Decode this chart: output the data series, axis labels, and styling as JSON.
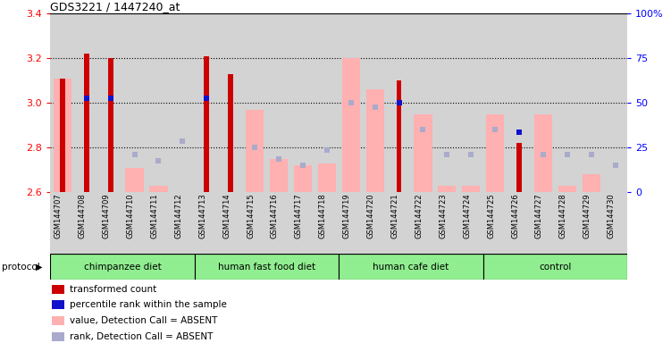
{
  "title": "GDS3221 / 1447240_at",
  "samples": [
    "GSM144707",
    "GSM144708",
    "GSM144709",
    "GSM144710",
    "GSM144711",
    "GSM144712",
    "GSM144713",
    "GSM144714",
    "GSM144715",
    "GSM144716",
    "GSM144717",
    "GSM144718",
    "GSM144719",
    "GSM144720",
    "GSM144721",
    "GSM144722",
    "GSM144723",
    "GSM144724",
    "GSM144725",
    "GSM144726",
    "GSM144727",
    "GSM144728",
    "GSM144729",
    "GSM144730"
  ],
  "red_bars": [
    3.11,
    3.22,
    3.2,
    null,
    null,
    null,
    3.21,
    3.13,
    null,
    null,
    null,
    null,
    null,
    null,
    3.1,
    null,
    null,
    null,
    null,
    2.82,
    null,
    null,
    null,
    null
  ],
  "pink_bars": [
    3.11,
    null,
    null,
    2.71,
    2.63,
    null,
    null,
    null,
    2.97,
    2.75,
    2.72,
    2.73,
    3.2,
    3.06,
    null,
    2.95,
    2.63,
    2.63,
    2.95,
    null,
    2.95,
    2.63,
    2.68,
    2.6
  ],
  "blue_squares_y": [
    null,
    3.02,
    3.02,
    null,
    null,
    null,
    3.02,
    null,
    null,
    null,
    null,
    null,
    null,
    null,
    3.0,
    null,
    null,
    null,
    null,
    2.87,
    null,
    null,
    null,
    null
  ],
  "lavender_squares_y": [
    null,
    null,
    null,
    2.77,
    2.74,
    2.83,
    null,
    null,
    2.8,
    2.75,
    2.72,
    2.79,
    3.0,
    2.98,
    null,
    2.88,
    2.77,
    2.77,
    2.88,
    null,
    2.77,
    2.77,
    2.77,
    2.72
  ],
  "groups": [
    {
      "label": "chimpanzee diet",
      "start": 0,
      "end": 6
    },
    {
      "label": "human fast food diet",
      "start": 6,
      "end": 12
    },
    {
      "label": "human cafe diet",
      "start": 12,
      "end": 18
    },
    {
      "label": "control",
      "start": 18,
      "end": 24
    }
  ],
  "ylim": [
    2.6,
    3.4
  ],
  "yticks_left": [
    2.6,
    2.8,
    3.0,
    3.2,
    3.4
  ],
  "yticks_right": [
    0,
    25,
    50,
    75,
    100
  ],
  "red_color": "#cc0000",
  "pink_color": "#ffb0b0",
  "blue_color": "#1111cc",
  "lavender_color": "#aaaacc",
  "bg_color": "#d3d3d3",
  "green_color": "#90ee90",
  "protocol_label": "protocol",
  "legend_entries": [
    {
      "color": "#cc0000",
      "label": "transformed count"
    },
    {
      "color": "#1111cc",
      "label": "percentile rank within the sample"
    },
    {
      "color": "#ffb0b0",
      "label": "value, Detection Call = ABSENT"
    },
    {
      "color": "#aaaacc",
      "label": "rank, Detection Call = ABSENT"
    }
  ]
}
